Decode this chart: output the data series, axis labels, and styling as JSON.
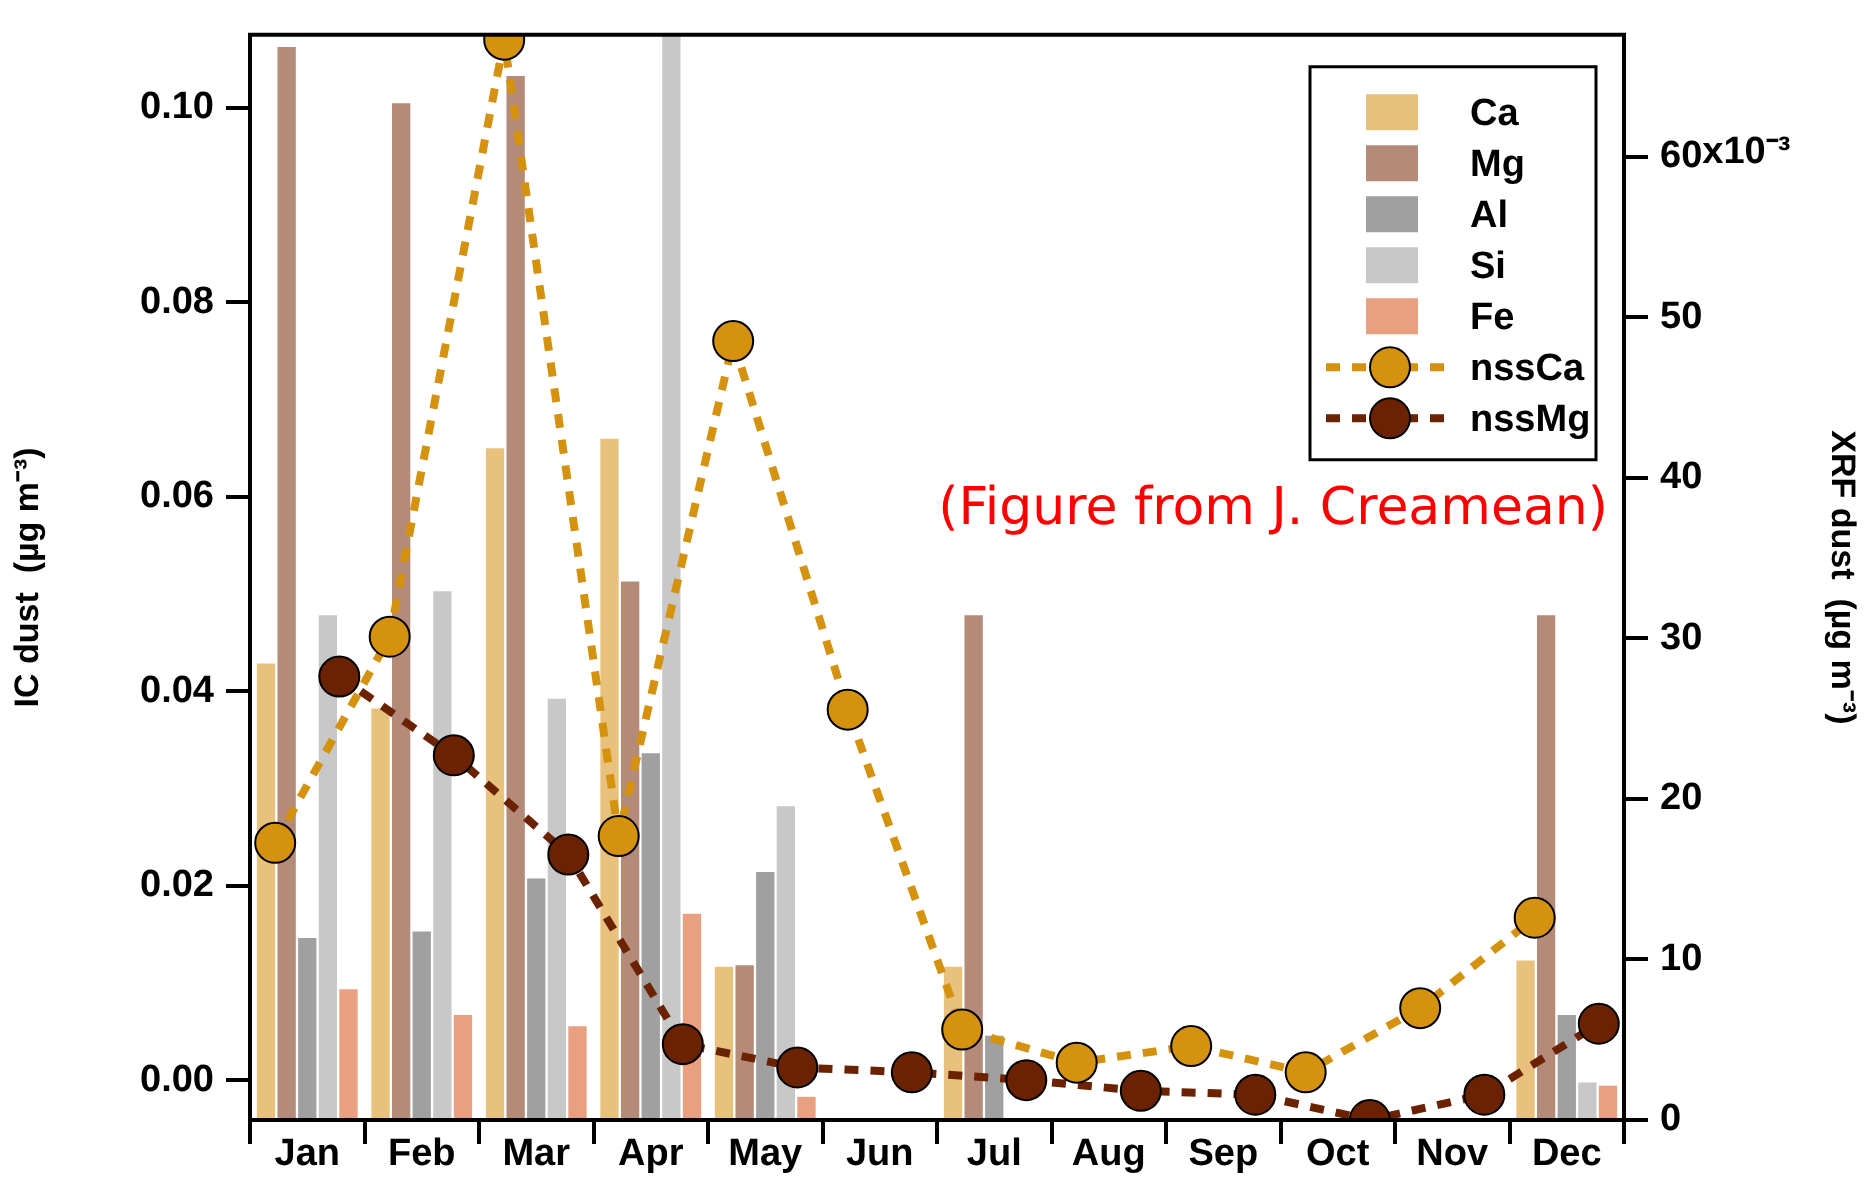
{
  "chart_data": {
    "type": "bar",
    "categories": [
      "Jan",
      "Feb",
      "Mar",
      "Apr",
      "May",
      "Jun",
      "Jul",
      "Aug",
      "Sep",
      "Oct",
      "Nov",
      "Dec"
    ],
    "ylabel": "IC dust  (µg m⁻³)",
    "y2label": "XRF dust  (µg m⁻³)",
    "ylim": [
      -0.0041,
      0.1075
    ],
    "yticks": [
      {
        "value": 0,
        "label": "0.00"
      },
      {
        "value": 0.02,
        "label": "0.02"
      },
      {
        "value": 0.04,
        "label": "0.04"
      },
      {
        "value": 0.06,
        "label": "0.06"
      },
      {
        "value": 0.08,
        "label": "0.08"
      },
      {
        "value": 0.1,
        "label": "0.10"
      }
    ],
    "y2lim": [
      0,
      67.6
    ],
    "y2ticks": [
      0,
      10,
      20,
      30,
      40,
      50,
      60
    ],
    "series": [
      {
        "name": "Ca",
        "color": "#e8c27c",
        "axis": "y2",
        "values": [
          28.4,
          25.6,
          41.8,
          42.4,
          9.5,
          0,
          9.5,
          0,
          0,
          0,
          0,
          9.9
        ]
      },
      {
        "name": "Mg",
        "color": "#b48a78",
        "axis": "y2",
        "values": [
          66.8,
          63.3,
          65.0,
          33.5,
          9.6,
          0,
          31.4,
          0,
          0,
          0,
          0,
          31.4
        ]
      },
      {
        "name": "Al",
        "color": "#a0a0a0",
        "axis": "y2",
        "values": [
          11.3,
          11.7,
          15.0,
          22.8,
          15.4,
          0,
          5.2,
          0,
          0,
          0,
          0,
          6.5
        ]
      },
      {
        "name": "Si",
        "color": "#c8c8c8",
        "axis": "y2",
        "values": [
          31.4,
          32.9,
          26.2,
          67.5,
          19.5,
          0,
          0,
          0,
          0,
          0,
          0,
          2.3
        ]
      },
      {
        "name": "Fe",
        "color": "#e8a080",
        "axis": "y2",
        "values": [
          8.1,
          6.5,
          5.8,
          12.8,
          1.4,
          0,
          0,
          0,
          0,
          0,
          0,
          2.1
        ]
      },
      {
        "name": "nssCa",
        "type": "line",
        "color": "#d4920f",
        "values": [
          0.0244,
          0.0456,
          0.107,
          0.0251,
          0.076,
          0.0381,
          0.0052,
          0.0018,
          0.0035,
          0.0008,
          0.0074,
          0.0167
        ]
      },
      {
        "name": "nssMg",
        "type": "line",
        "color": "#6b2200",
        "values": [
          0.0415,
          0.0334,
          0.0232,
          0.0037,
          0.0013,
          0.0008,
          0,
          -0.0011,
          -0.0015,
          -0.0041,
          -0.0015,
          0.0058
        ]
      }
    ],
    "marker": "circle",
    "line_style": "dashed",
    "grid": false,
    "legend": "top right",
    "annotations": [
      "(Figure from J. Creamean)",
      "x10⁻³"
    ]
  }
}
